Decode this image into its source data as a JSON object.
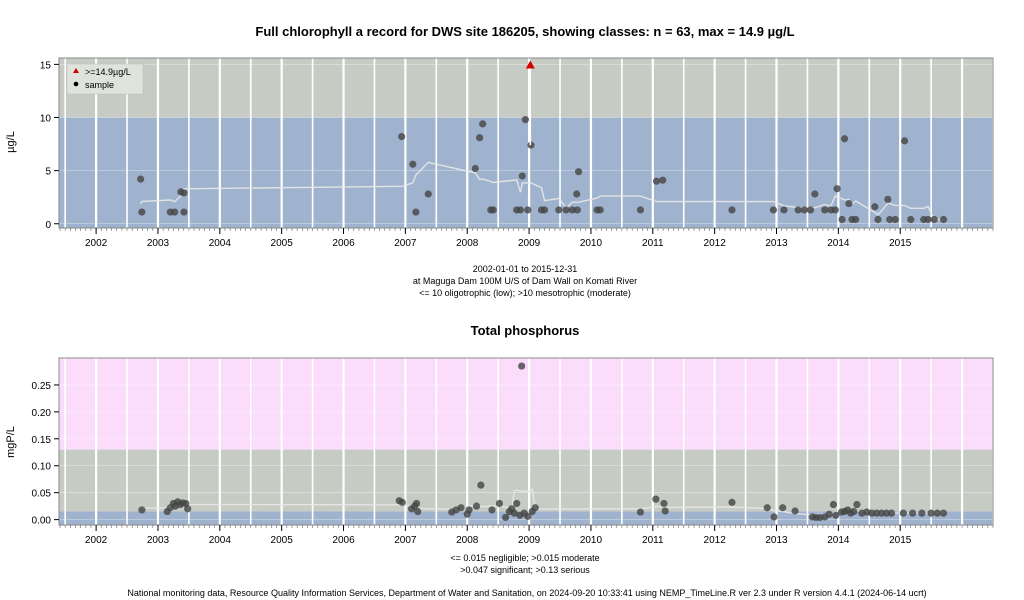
{
  "chart_data": [
    {
      "type": "scatter",
      "title": "Full chlorophyll a record for DWS site 186205, showing classes: n = 63, max = 14.9 µg/L",
      "ylabel": "µg/L",
      "xlim": [
        2001.4,
        2016.5
      ],
      "ylim": [
        -0.4,
        15.6
      ],
      "yticks": [
        0,
        5,
        10,
        15
      ],
      "x_tick_labels": [
        "2002",
        "2003",
        "2004",
        "2005",
        "2006",
        "2007",
        "2008",
        "2009",
        "2010",
        "2011",
        "2012",
        "2013",
        "2014",
        "2015"
      ],
      "bands": [
        {
          "from": -0.4,
          "to": 10,
          "color": "#a0b3ce"
        },
        {
          "from": 10,
          "to": 15.6,
          "color": "#c6ccc4"
        }
      ],
      "legend_position": "top-left",
      "legend": [
        {
          "symbol": "triangle",
          "color": "#d40000",
          "label": ">=14.9µg/L"
        },
        {
          "symbol": "dot",
          "color": "#000000",
          "label": "sample"
        }
      ],
      "notes": [
        "2002-01-01 to 2015-12-31",
        "at Maguga Dam 100M U/S of Dam Wall on Komati River",
        "<= 10 oligotrophic (low); >10 mesotrophic (moderate)"
      ],
      "points": [
        [
          2002.72,
          4.2
        ],
        [
          2002.74,
          1.1
        ],
        [
          2003.2,
          1.1
        ],
        [
          2003.27,
          1.1
        ],
        [
          2003.37,
          3.0
        ],
        [
          2003.42,
          2.9
        ],
        [
          2003.42,
          1.1
        ],
        [
          2006.94,
          8.2
        ],
        [
          2007.12,
          5.6
        ],
        [
          2007.17,
          1.1
        ],
        [
          2007.37,
          2.8
        ],
        [
          2008.13,
          5.2
        ],
        [
          2008.2,
          8.1
        ],
        [
          2008.25,
          9.4
        ],
        [
          2008.38,
          1.3
        ],
        [
          2008.42,
          1.3
        ],
        [
          2008.8,
          1.3
        ],
        [
          2008.86,
          1.3
        ],
        [
          2008.89,
          4.5
        ],
        [
          2008.94,
          9.8
        ],
        [
          2008.98,
          1.3
        ],
        [
          2009.03,
          7.4
        ],
        [
          2009.2,
          1.3
        ],
        [
          2009.25,
          1.3
        ],
        [
          2009.48,
          1.3
        ],
        [
          2009.6,
          1.3
        ],
        [
          2009.7,
          1.3
        ],
        [
          2009.78,
          1.3
        ],
        [
          2009.77,
          2.8
        ],
        [
          2009.8,
          4.9
        ],
        [
          2010.1,
          1.3
        ],
        [
          2010.15,
          1.3
        ],
        [
          2010.8,
          1.3
        ],
        [
          2011.06,
          4.0
        ],
        [
          2011.16,
          4.1
        ],
        [
          2012.28,
          1.3
        ],
        [
          2012.95,
          1.3
        ],
        [
          2013.12,
          1.3
        ],
        [
          2013.35,
          1.3
        ],
        [
          2013.45,
          1.3
        ],
        [
          2013.55,
          1.3
        ],
        [
          2013.62,
          2.8
        ],
        [
          2013.78,
          1.3
        ],
        [
          2013.88,
          1.3
        ],
        [
          2013.95,
          1.3
        ],
        [
          2013.98,
          3.3
        ],
        [
          2014.06,
          0.4
        ],
        [
          2014.1,
          8.0
        ],
        [
          2014.17,
          1.9
        ],
        [
          2014.22,
          0.4
        ],
        [
          2014.28,
          0.4
        ],
        [
          2014.59,
          1.6
        ],
        [
          2014.64,
          0.4
        ],
        [
          2014.8,
          2.3
        ],
        [
          2014.83,
          0.4
        ],
        [
          2014.92,
          0.4
        ],
        [
          2015.07,
          7.8
        ],
        [
          2015.17,
          0.4
        ],
        [
          2015.38,
          0.4
        ],
        [
          2015.45,
          0.4
        ],
        [
          2015.55,
          0.4
        ],
        [
          2015.7,
          0.4
        ]
      ],
      "max_point": [
        2009.02,
        14.9
      ]
    },
    {
      "type": "scatter",
      "title": "Total phosphorus",
      "ylabel": "mgP/L",
      "xlim": [
        2001.4,
        2016.5
      ],
      "ylim": [
        -0.01,
        0.3
      ],
      "yticks": [
        0.0,
        0.05,
        0.1,
        0.15,
        0.2,
        0.25
      ],
      "ytick_labels": [
        "0.00",
        "0.05",
        "0.10",
        "0.15",
        "0.20",
        "0.25"
      ],
      "x_tick_labels": [
        "2002",
        "2003",
        "2004",
        "2005",
        "2006",
        "2007",
        "2008",
        "2009",
        "2010",
        "2011",
        "2012",
        "2013",
        "2014",
        "2015"
      ],
      "bands": [
        {
          "from": -0.01,
          "to": 0.015,
          "color": "#a0b3ce"
        },
        {
          "from": 0.015,
          "to": 0.13,
          "color": "#c6ccc4"
        },
        {
          "from": 0.13,
          "to": 0.3,
          "color": "#fbdcfb"
        }
      ],
      "notes": [
        "<= 0.015 negligible; >0.015 moderate",
        ">0.047 significant; >0.13 serious"
      ],
      "points": [
        [
          2002.74,
          0.018
        ],
        [
          2003.15,
          0.015
        ],
        [
          2003.2,
          0.022
        ],
        [
          2003.25,
          0.03
        ],
        [
          2003.28,
          0.025
        ],
        [
          2003.32,
          0.033
        ],
        [
          2003.36,
          0.028
        ],
        [
          2003.4,
          0.031
        ],
        [
          2003.45,
          0.03
        ],
        [
          2003.48,
          0.02
        ],
        [
          2006.9,
          0.035
        ],
        [
          2006.95,
          0.032
        ],
        [
          2007.1,
          0.02
        ],
        [
          2007.15,
          0.025
        ],
        [
          2007.18,
          0.03
        ],
        [
          2007.2,
          0.015
        ],
        [
          2007.75,
          0.014
        ],
        [
          2007.82,
          0.018
        ],
        [
          2007.9,
          0.022
        ],
        [
          2008.0,
          0.01
        ],
        [
          2008.03,
          0.018
        ],
        [
          2008.15,
          0.025
        ],
        [
          2008.22,
          0.064
        ],
        [
          2008.4,
          0.018
        ],
        [
          2008.52,
          0.03
        ],
        [
          2008.62,
          0.004
        ],
        [
          2008.68,
          0.015
        ],
        [
          2008.72,
          0.02
        ],
        [
          2008.76,
          0.012
        ],
        [
          2008.8,
          0.03
        ],
        [
          2008.85,
          0.008
        ],
        [
          2008.88,
          0.285
        ],
        [
          2008.92,
          0.012
        ],
        [
          2008.98,
          0.006
        ],
        [
          2009.05,
          0.015
        ],
        [
          2009.1,
          0.022
        ],
        [
          2010.8,
          0.014
        ],
        [
          2011.05,
          0.038
        ],
        [
          2011.18,
          0.03
        ],
        [
          2011.2,
          0.016
        ],
        [
          2012.28,
          0.032
        ],
        [
          2012.85,
          0.022
        ],
        [
          2012.96,
          0.005
        ],
        [
          2013.1,
          0.022
        ],
        [
          2013.3,
          0.016
        ],
        [
          2013.58,
          0.005
        ],
        [
          2013.64,
          0.004
        ],
        [
          2013.7,
          0.004
        ],
        [
          2013.78,
          0.005
        ],
        [
          2013.85,
          0.01
        ],
        [
          2013.92,
          0.028
        ],
        [
          2013.96,
          0.008
        ],
        [
          2014.05,
          0.014
        ],
        [
          2014.1,
          0.015
        ],
        [
          2014.15,
          0.018
        ],
        [
          2014.2,
          0.012
        ],
        [
          2014.25,
          0.015
        ],
        [
          2014.3,
          0.028
        ],
        [
          2014.38,
          0.012
        ],
        [
          2014.46,
          0.014
        ],
        [
          2014.54,
          0.012
        ],
        [
          2014.62,
          0.012
        ],
        [
          2014.7,
          0.012
        ],
        [
          2014.78,
          0.012
        ],
        [
          2014.86,
          0.012
        ],
        [
          2015.05,
          0.012
        ],
        [
          2015.2,
          0.012
        ],
        [
          2015.35,
          0.012
        ],
        [
          2015.5,
          0.012
        ],
        [
          2015.6,
          0.012
        ],
        [
          2015.7,
          0.012
        ]
      ]
    }
  ],
  "footer": "National monitoring data, Resource Quality Information Services, Department of Water and Sanitation, on 2024-09-20 10:33:41 using NEMP_TimeLine.R ver 2.3 under R version 4.4.1 (2024-06-14 ucrt)"
}
